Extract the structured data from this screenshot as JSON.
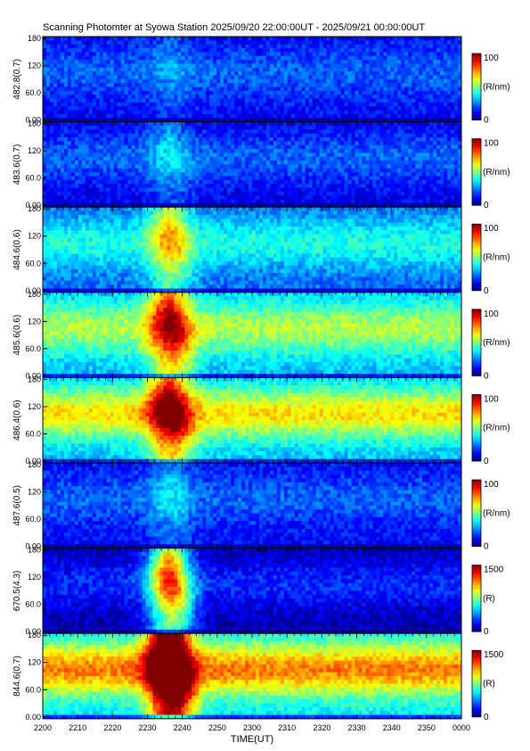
{
  "title": "Scanning Photomter at Syowa Station 2025/09/20 22:00:00UT - 2025/09/21 00:00:00UT",
  "chart_data": {
    "type": "heatmap",
    "xlabel": "TIME(UT)",
    "x_ticks": [
      "2200",
      "2210",
      "2220",
      "2230",
      "2240",
      "2250",
      "2300",
      "2310",
      "2320",
      "2330",
      "2340",
      "2350",
      "0000"
    ],
    "x_range_minutes": [
      0,
      120
    ],
    "y_ticks": [
      "0.00",
      "60.0",
      "120",
      "180"
    ],
    "y_range": [
      0,
      180
    ],
    "panels": [
      {
        "ylabel": "482.8(0.7)",
        "colorbar_max": "100",
        "colorbar_min": "0",
        "unit": "(R/nm)",
        "base": 0.12,
        "band": 0.1,
        "burst": 0.08
      },
      {
        "ylabel": "483.6(0.7)",
        "colorbar_max": "100",
        "colorbar_min": "0",
        "unit": "(R/nm)",
        "base": 0.1,
        "band": 0.12,
        "burst": 0.15
      },
      {
        "ylabel": "484.6(0.6)",
        "colorbar_max": "100",
        "colorbar_min": "0",
        "unit": "(R/nm)",
        "base": 0.22,
        "band": 0.18,
        "burst": 0.35
      },
      {
        "ylabel": "485.6(0.6)",
        "colorbar_max": "100",
        "colorbar_min": "0",
        "unit": "(R/nm)",
        "base": 0.3,
        "band": 0.25,
        "burst": 0.5
      },
      {
        "ylabel": "486.4(0.6)",
        "colorbar_max": "100",
        "colorbar_min": "0",
        "unit": "(R/nm)",
        "base": 0.3,
        "band": 0.35,
        "burst": 0.55
      },
      {
        "ylabel": "487.6(0.5)",
        "colorbar_max": "100",
        "colorbar_min": "0",
        "unit": "(R/nm)",
        "base": 0.12,
        "band": 0.1,
        "burst": 0.15
      },
      {
        "ylabel": "670.5(4.3)",
        "colorbar_max": "1500",
        "colorbar_min": "0",
        "unit": "(R)",
        "base": 0.04,
        "band": 0.12,
        "burst": 0.7
      },
      {
        "ylabel": "844.6(0.7)",
        "colorbar_max": "1500",
        "colorbar_min": "0",
        "unit": "(R)",
        "base": 0.35,
        "band": 0.4,
        "burst": 0.95
      }
    ]
  }
}
